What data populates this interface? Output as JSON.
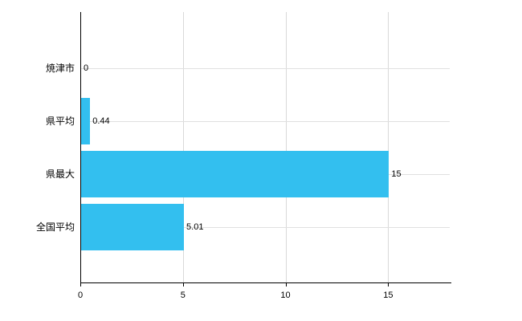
{
  "chart_data": {
    "type": "bar",
    "orientation": "horizontal",
    "title": "",
    "xlabel": "",
    "ylabel": "",
    "categories": [
      "焼津市",
      "県平均",
      "県最大",
      "全国平均"
    ],
    "values": [
      0,
      0.44,
      15,
      5.01
    ],
    "value_labels": [
      "0",
      "0.44",
      "15",
      "5.01"
    ],
    "xticks": [
      0,
      5,
      10,
      15
    ],
    "xtick_labels": [
      "0",
      "5",
      "10",
      "15"
    ],
    "xlim": [
      0,
      18
    ],
    "grid": true,
    "legend": "none",
    "bar_color": "#33bfef",
    "axis_color": "#000000",
    "grid_color": "#d9d9d9",
    "background": "#ffffff"
  }
}
